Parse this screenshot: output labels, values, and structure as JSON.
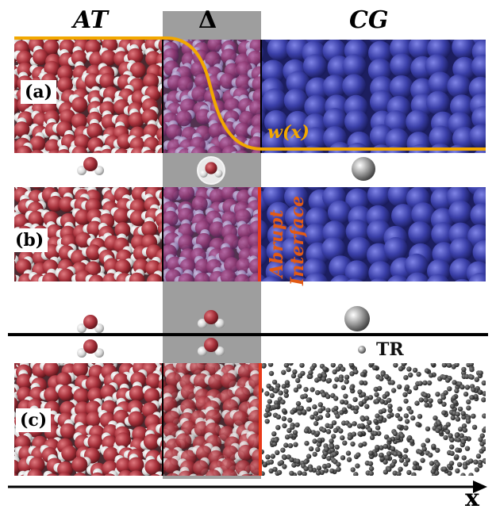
{
  "headers": {
    "at": "AT",
    "delta": "Δ",
    "cg": "CG"
  },
  "panels": [
    {
      "id": "a",
      "label": "(a)"
    },
    {
      "id": "b",
      "label": "(b)"
    },
    {
      "id": "c",
      "label": "(c)"
    }
  ],
  "weight_function_label": "w(x)",
  "interface_label": {
    "line1": "Abrupt",
    "line2": "Interface"
  },
  "tr_label": "TR",
  "axis_label": "x",
  "colors": {
    "oxygen": "#a8323c",
    "hydrogen": "#e6e6e6",
    "cg_bead": "#3a3fa8",
    "tr_particle": "#333333",
    "weight_curve": "#f2a800",
    "interface_line": "#e83a1a",
    "hybrid_band": "#9e9e9e"
  }
}
